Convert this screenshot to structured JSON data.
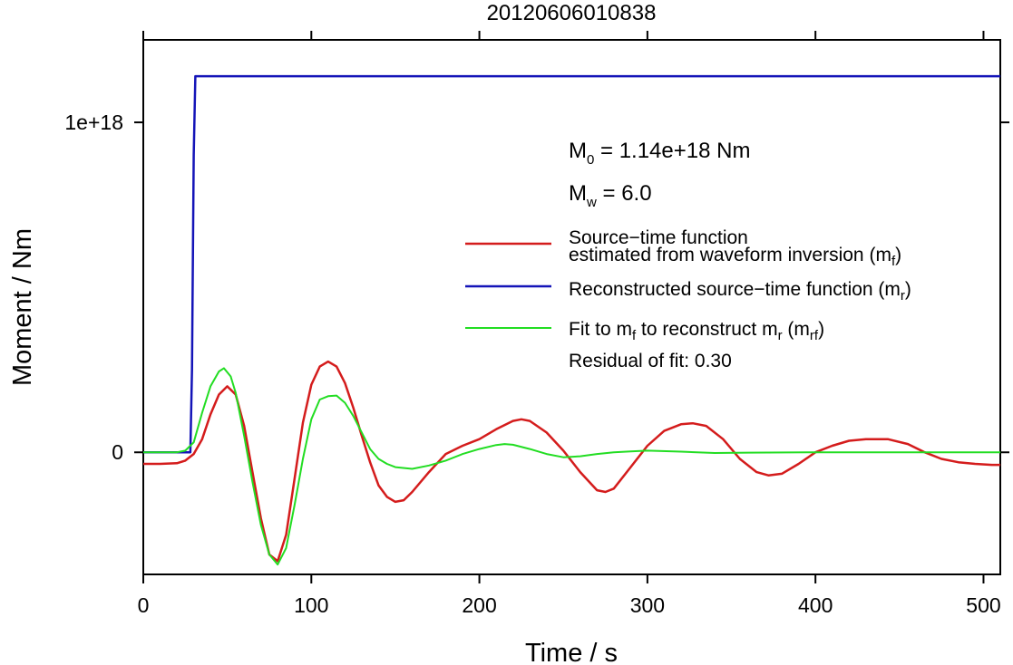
{
  "chart_data": {
    "type": "line",
    "title": "20120606010838",
    "xlabel": "Time / s",
    "ylabel": "Moment / Nm",
    "xlim": [
      0,
      510
    ],
    "ylim": [
      -3.7e+17,
      1.25e+18
    ],
    "x_ticks": [
      {
        "value": 0,
        "label": "0"
      },
      {
        "value": 100,
        "label": "100"
      },
      {
        "value": 200,
        "label": "200"
      },
      {
        "value": 300,
        "label": "300"
      },
      {
        "value": 400,
        "label": "400"
      },
      {
        "value": 500,
        "label": "500"
      }
    ],
    "y_ticks": [
      {
        "value": 0,
        "label": "0"
      },
      {
        "value": 1e+18,
        "label": "1e+18"
      }
    ],
    "grid": false,
    "legend_position": "right",
    "annotations": {
      "m0": {
        "prefix": "M",
        "sub": "0",
        "text": " = 1.14e+18 Nm"
      },
      "mw": {
        "prefix": "M",
        "sub": "w",
        "text": " = 6.0"
      },
      "residual": "Residual of fit: 0.30"
    },
    "legend": [
      {
        "line1": "Source−time function",
        "line2": "estimated from waveform inversion (m",
        "sub": "f",
        "suffix": ")",
        "color": "#d41c1c"
      },
      {
        "line1": "Reconstructed source−time function (m",
        "sub": "r",
        "suffix": ")",
        "color": "#1414b8"
      },
      {
        "line1": "Fit to m",
        "sub": "f",
        "mid": " to reconstruct m",
        "sub2": "r",
        "mid2": " (m",
        "sub3": "rf",
        "suffix": ")",
        "color": "#22dd22"
      }
    ],
    "series": [
      {
        "name": "Source−time function estimated from waveform inversion (mf)",
        "color": "#d41c1c",
        "x": [
          0,
          10,
          20,
          25,
          30,
          35,
          40,
          45,
          50,
          55,
          60,
          65,
          70,
          75,
          80,
          85,
          90,
          95,
          100,
          105,
          110,
          115,
          120,
          125,
          130,
          135,
          140,
          145,
          150,
          155,
          160,
          170,
          180,
          190,
          200,
          210,
          220,
          225,
          230,
          240,
          250,
          260,
          270,
          275,
          280,
          290,
          300,
          310,
          320,
          327,
          335,
          345,
          355,
          365,
          372,
          380,
          390,
          400,
          410,
          420,
          430,
          443,
          455,
          465,
          475,
          485,
          495,
          505,
          510
        ],
        "y": [
          -3.5e+16,
          -3.5e+16,
          -3.3e+16,
          -2.5e+16,
          -5000000000000000.0,
          4e+16,
          1.15e+17,
          1.75e+17,
          2e+17,
          1.75e+17,
          8e+16,
          -6e+16,
          -2e+17,
          -3.1e+17,
          -3.3e+17,
          -2.5e+17,
          -8e+16,
          9e+16,
          2.05e+17,
          2.6e+17,
          2.75e+17,
          2.6e+17,
          2.1e+17,
          1.35e+17,
          5e+16,
          -3e+16,
          -1e+17,
          -1.35e+17,
          -1.5e+17,
          -1.45e+17,
          -1.2e+17,
          -6e+16,
          -5000000000000000.0,
          2e+16,
          4e+16,
          7e+16,
          9.5e+16,
          1e+17,
          9.5e+16,
          6e+16,
          5000000000000000.0,
          -6e+16,
          -1.15e+17,
          -1.2e+17,
          -1.1e+17,
          -4.5e+16,
          2e+16,
          6.5e+16,
          8.5e+16,
          8.8e+16,
          8e+16,
          4e+16,
          -2e+16,
          -6e+16,
          -7e+16,
          -6.5e+16,
          -3.5e+16,
          0,
          2e+16,
          3.5e+16,
          4e+16,
          4e+16,
          2.5e+16,
          0,
          -2e+16,
          -3e+16,
          -3.5e+16,
          -3.8e+16,
          -3.8e+16
        ]
      },
      {
        "name": "Reconstructed source−time function (mr)",
        "color": "#1414b8",
        "x": [
          0,
          28,
          29,
          30,
          31,
          510
        ],
        "y": [
          0,
          0,
          2.5e+17,
          9e+17,
          1.14e+18,
          1.14e+18
        ]
      },
      {
        "name": "Fit to mf to reconstruct mr (mrf)",
        "color": "#22dd22",
        "x": [
          0,
          20,
          25,
          30,
          35,
          40,
          45,
          48,
          52,
          55,
          60,
          65,
          70,
          75,
          80,
          85,
          90,
          95,
          100,
          105,
          110,
          115,
          120,
          125,
          130,
          135,
          140,
          145,
          150,
          160,
          170,
          180,
          190,
          200,
          210,
          215,
          220,
          230,
          240,
          250,
          260,
          270,
          280,
          290,
          300,
          320,
          340,
          360,
          400,
          450,
          510
        ],
        "y": [
          0,
          0,
          5000000000000000.0,
          3e+16,
          1.2e+17,
          2e+17,
          2.45e+17,
          2.55e+17,
          2.3e+17,
          1.8e+17,
          5e+16,
          -9e+16,
          -2.2e+17,
          -3.1e+17,
          -3.4e+17,
          -2.9e+17,
          -1.6e+17,
          -2e+16,
          1e+17,
          1.6e+17,
          1.7e+17,
          1.72e+17,
          1.5e+17,
          1.1e+17,
          6e+16,
          1e+16,
          -2e+16,
          -3.5e+16,
          -4.5e+16,
          -5e+16,
          -4e+16,
          -2.5e+16,
          -5000000000000000.0,
          1e+16,
          2.2e+16,
          2.5e+16,
          2.3e+16,
          1e+16,
          -5000000000000000.0,
          -1.5e+16,
          -1.2e+16,
          -5000000000000000.0,
          0,
          3000000000000000.0,
          5000000000000000.0,
          2000000000000000.0,
          -2000000000000000.0,
          -1000000000000000.0,
          0,
          0,
          0
        ]
      }
    ]
  }
}
